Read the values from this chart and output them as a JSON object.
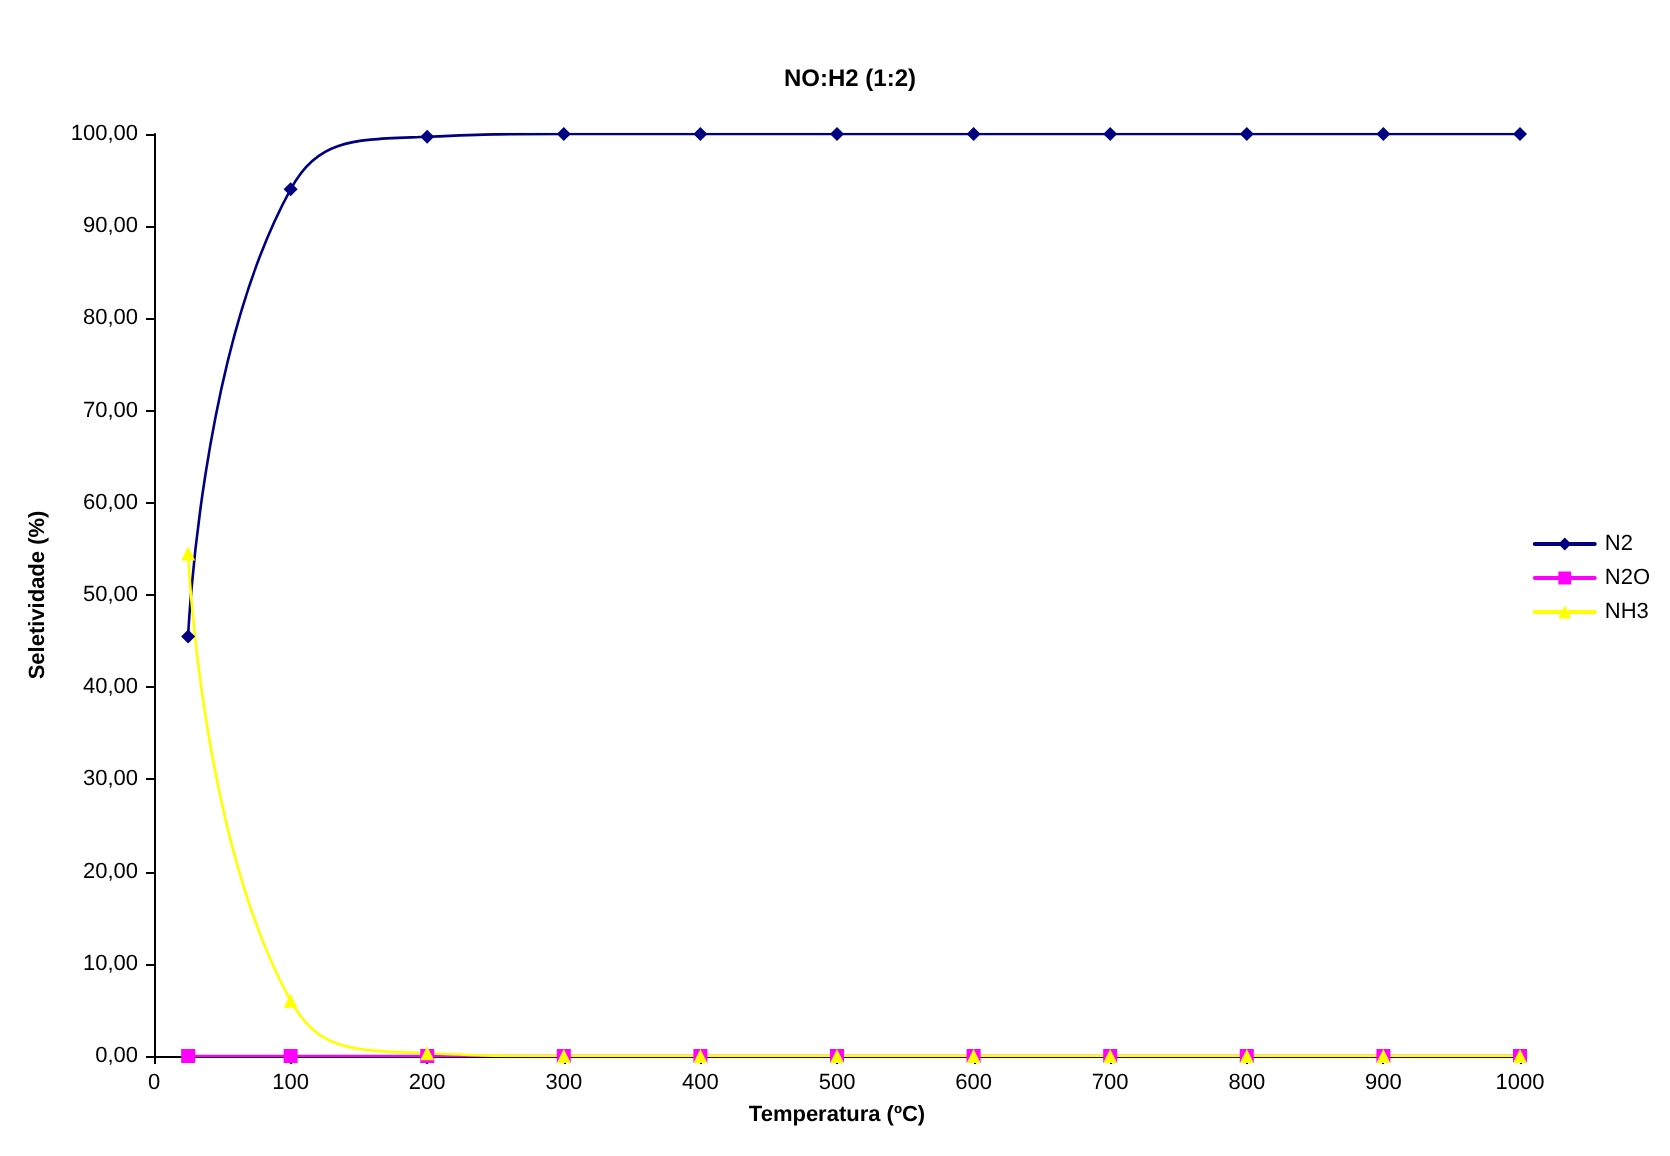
{
  "chart_data": {
    "type": "line",
    "title": "NO:H2 (1:2)",
    "xlabel": "Temperatura (ºC)",
    "ylabel": "Seletividade (%)",
    "x": [
      25,
      100,
      200,
      300,
      400,
      500,
      600,
      700,
      800,
      900,
      1000
    ],
    "series": [
      {
        "name": "N2",
        "color": "#000080",
        "marker": "diamond",
        "values": [
          45.5,
          94,
          99.7,
          100,
          100,
          100,
          100,
          100,
          100,
          100,
          100
        ]
      },
      {
        "name": "N2O",
        "color": "#ff00ff",
        "marker": "square",
        "values": [
          0,
          0,
          0,
          0,
          0,
          0,
          0,
          0,
          0,
          0,
          0
        ]
      },
      {
        "name": "NH3",
        "color": "#ffff00",
        "marker": "triangle",
        "values": [
          54.5,
          6,
          0.3,
          0,
          0,
          0,
          0,
          0,
          0,
          0,
          0
        ]
      }
    ],
    "xlim": [
      0,
      1000
    ],
    "xticks": [
      0,
      100,
      200,
      300,
      400,
      500,
      600,
      700,
      800,
      900,
      1000
    ],
    "ylim": [
      0,
      100
    ],
    "yticks": [
      {
        "value": 0,
        "label": "0,00"
      },
      {
        "value": 10,
        "label": "10,00"
      },
      {
        "value": 20,
        "label": "20,00"
      },
      {
        "value": 30,
        "label": "30,00"
      },
      {
        "value": 40,
        "label": "40,00"
      },
      {
        "value": 50,
        "label": "50,00"
      },
      {
        "value": 60,
        "label": "60,00"
      },
      {
        "value": 70,
        "label": "70,00"
      },
      {
        "value": 80,
        "label": "80,00"
      },
      {
        "value": 90,
        "label": "90,00"
      },
      {
        "value": 100,
        "label": "100,00"
      }
    ],
    "grid": false,
    "legend": "right",
    "line_style": "solid"
  }
}
